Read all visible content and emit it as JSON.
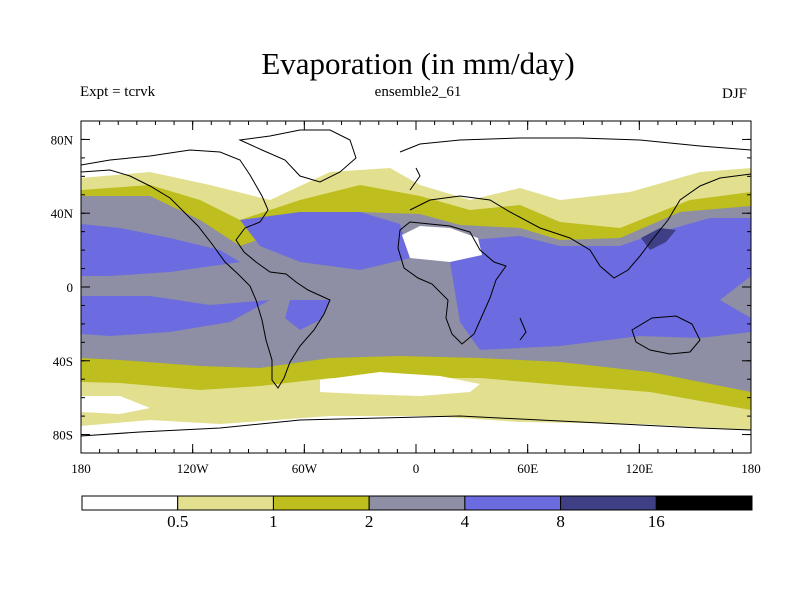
{
  "title": "Evaporation (in mm/day)",
  "left_label": "Expt = tcrvk",
  "center_label": "ensemble2_61",
  "right_label": "DJF",
  "lat_ticks": [
    {
      "label": "80N",
      "value": 80
    },
    {
      "label": "40N",
      "value": 40
    },
    {
      "label": "0",
      "value": 0
    },
    {
      "label": "40S",
      "value": -40
    },
    {
      "label": "80S",
      "value": -80
    }
  ],
  "lon_ticks": [
    {
      "label": "180",
      "value": -180
    },
    {
      "label": "120W",
      "value": -120
    },
    {
      "label": "60W",
      "value": -60
    },
    {
      "label": "0",
      "value": 0
    },
    {
      "label": "60E",
      "value": 60
    },
    {
      "label": "120E",
      "value": 120
    },
    {
      "label": "180",
      "value": 180
    }
  ],
  "extent": {
    "lon": [
      -180,
      180
    ],
    "lat": [
      -90,
      90
    ]
  },
  "colorbar": {
    "levels": [
      "0.5",
      "1",
      "2",
      "4",
      "8",
      "16"
    ],
    "colors": [
      "#ffffff",
      "#e2e08e",
      "#bebe1e",
      "#8e8ea4",
      "#6c6ce0",
      "#3f3f86",
      "#000000"
    ]
  }
}
